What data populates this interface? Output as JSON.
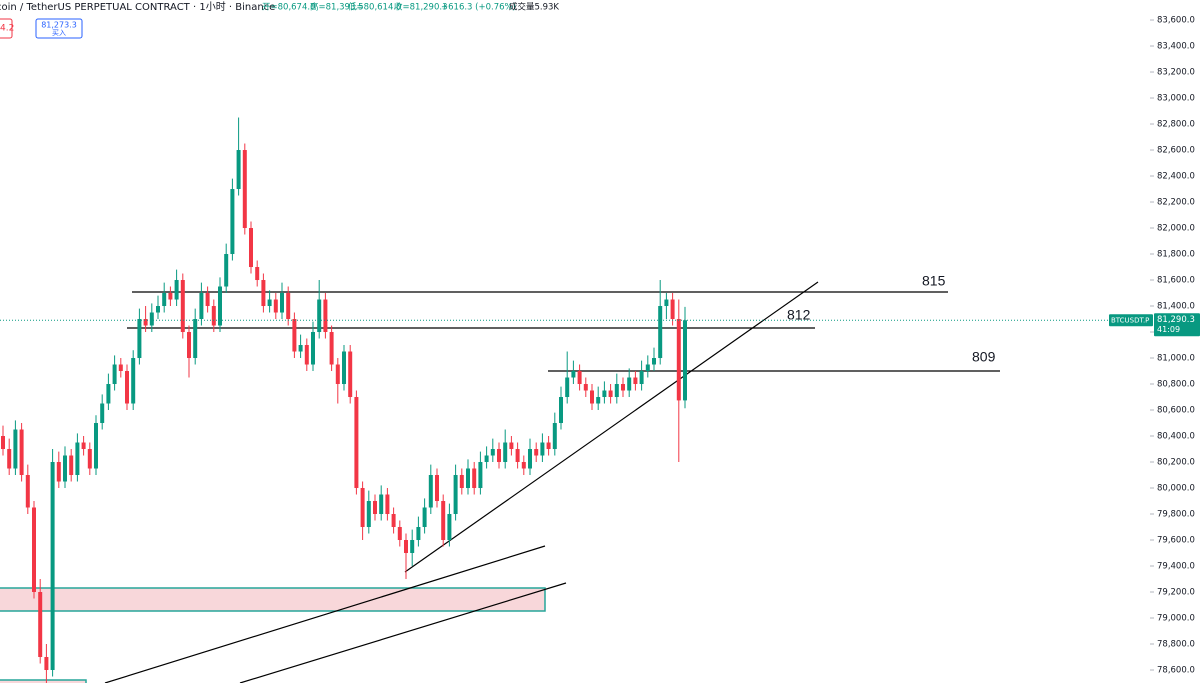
{
  "chart_data": {
    "type": "candlestick",
    "title": "coin / TetherUS PERPETUAL CONTRACT · 1小时 · Binance",
    "info": [
      "开=80,674.0",
      "高=81,393.5",
      "低=80,614.0",
      "收=81,290.3",
      "+616.3 (+0.76%)",
      "成交量5.93K"
    ],
    "sell_box": "4.2",
    "buy_box": {
      "price": "81,273.3",
      "label": "买入"
    },
    "price_tag": {
      "symbol": "BTCUSDT.P",
      "price": "81,290.3",
      "countdown": "41:09"
    },
    "level_labels": [
      "815",
      "812",
      "809"
    ],
    "up_color": "#089981",
    "down_color": "#f23645",
    "ylim": [
      78500,
      83754
    ],
    "yticks": [
      {
        "value": 78600,
        "label": "78,600.0"
      },
      {
        "value": 78800,
        "label": "78,800.0"
      },
      {
        "value": 79000,
        "label": "79,000.0"
      },
      {
        "value": 79200,
        "label": "79,200.0"
      },
      {
        "value": 79400,
        "label": "79,400.0"
      },
      {
        "value": 79600,
        "label": "79,600.0"
      },
      {
        "value": 79800,
        "label": "79,800.0"
      },
      {
        "value": 80000,
        "label": "80,000.0"
      },
      {
        "value": 80200,
        "label": "80,200.0"
      },
      {
        "value": 80400,
        "label": "80,400.0"
      },
      {
        "value": 80600,
        "label": "80,600.0"
      },
      {
        "value": 80800,
        "label": "80,800.0"
      },
      {
        "value": 81000,
        "label": "81,000.0"
      },
      {
        "value": 81200,
        "label": "81,200.0"
      },
      {
        "value": 81400,
        "label": "81,400.0"
      },
      {
        "value": 81600,
        "label": "81,600.0"
      },
      {
        "value": 81800,
        "label": "81,800.0"
      },
      {
        "value": 82000,
        "label": "82,000.0"
      },
      {
        "value": 82200,
        "label": "82,200.0"
      },
      {
        "value": 82400,
        "label": "82,400.0"
      },
      {
        "value": 82600,
        "label": "82,600.0"
      },
      {
        "value": 82800,
        "label": "82,800.0"
      },
      {
        "value": 83000,
        "label": "83,000.0"
      },
      {
        "value": 83200,
        "label": "83,200.0"
      },
      {
        "value": 83400,
        "label": "83,400.0"
      },
      {
        "value": 83600,
        "label": "83,600.0"
      }
    ],
    "candles": [
      [
        80400,
        80480,
        80250,
        80300
      ],
      [
        80300,
        80380,
        80100,
        80150
      ],
      [
        80150,
        80520,
        80100,
        80450
      ],
      [
        80450,
        80500,
        80050,
        80100
      ],
      [
        80100,
        80180,
        79800,
        79850
      ],
      [
        79850,
        79900,
        79150,
        79200
      ],
      [
        79200,
        79300,
        78650,
        78700
      ],
      [
        78700,
        78800,
        78500,
        78600
      ],
      [
        78600,
        80300,
        78550,
        80200
      ],
      [
        80200,
        80280,
        80000,
        80050
      ],
      [
        80050,
        80320,
        80000,
        80250
      ],
      [
        80250,
        80300,
        80050,
        80100
      ],
      [
        80100,
        80420,
        80050,
        80350
      ],
      [
        80350,
        80400,
        80250,
        80300
      ],
      [
        80300,
        80350,
        80100,
        80150
      ],
      [
        80150,
        80560,
        80100,
        80500
      ],
      [
        80500,
        80720,
        80450,
        80650
      ],
      [
        80650,
        80880,
        80600,
        80800
      ],
      [
        80800,
        81020,
        80750,
        80950
      ],
      [
        80950,
        81000,
        80850,
        80900
      ],
      [
        80900,
        80950,
        80600,
        80650
      ],
      [
        80650,
        81060,
        80600,
        81000
      ],
      [
        81000,
        81380,
        80950,
        81300
      ],
      [
        81300,
        81400,
        81200,
        81250
      ],
      [
        81250,
        81420,
        81200,
        81350
      ],
      [
        81350,
        81480,
        81300,
        81400
      ],
      [
        81400,
        81580,
        81350,
        81500
      ],
      [
        81500,
        81550,
        81400,
        81450
      ],
      [
        81450,
        81680,
        81400,
        81600
      ],
      [
        81600,
        81650,
        81150,
        81200
      ],
      [
        81200,
        81250,
        80850,
        81000
      ],
      [
        81000,
        81380,
        80950,
        81300
      ],
      [
        81300,
        81580,
        81250,
        81500
      ],
      [
        81500,
        81550,
        81350,
        81400
      ],
      [
        81400,
        81450,
        81200,
        81250
      ],
      [
        81250,
        81620,
        81200,
        81550
      ],
      [
        81550,
        81880,
        81500,
        81800
      ],
      [
        81800,
        82380,
        81750,
        82300
      ],
      [
        82300,
        82850,
        82250,
        82600
      ],
      [
        82600,
        82650,
        81950,
        82000
      ],
      [
        82000,
        82050,
        81650,
        81700
      ],
      [
        81700,
        81750,
        81550,
        81600
      ],
      [
        81600,
        81650,
        81350,
        81400
      ],
      [
        81400,
        81520,
        81350,
        81450
      ],
      [
        81450,
        81500,
        81300,
        81350
      ],
      [
        81350,
        81580,
        81300,
        81500
      ],
      [
        81500,
        81550,
        81250,
        81300
      ],
      [
        81300,
        81350,
        81000,
        81050
      ],
      [
        81050,
        81180,
        81000,
        81100
      ],
      [
        81100,
        81150,
        80900,
        80950
      ],
      [
        80950,
        81280,
        80900,
        81200
      ],
      [
        81200,
        81600,
        81150,
        81450
      ],
      [
        81450,
        81500,
        81150,
        81200
      ],
      [
        81200,
        81250,
        80900,
        80950
      ],
      [
        80950,
        81000,
        80650,
        80800
      ],
      [
        80800,
        81100,
        80750,
        81050
      ],
      [
        81050,
        81100,
        80650,
        80700
      ],
      [
        80700,
        80750,
        79950,
        80000
      ],
      [
        80000,
        80050,
        79600,
        79700
      ],
      [
        79700,
        79980,
        79650,
        79900
      ],
      [
        79900,
        79950,
        79750,
        79800
      ],
      [
        79800,
        80020,
        79750,
        79950
      ],
      [
        79950,
        80000,
        79750,
        79800
      ],
      [
        79800,
        79850,
        79650,
        79700
      ],
      [
        79700,
        79750,
        79550,
        79600
      ],
      [
        79600,
        79650,
        79300,
        79500
      ],
      [
        79500,
        79680,
        79400,
        79600
      ],
      [
        79600,
        79780,
        79550,
        79700
      ],
      [
        79700,
        79920,
        79650,
        79850
      ],
      [
        79850,
        80180,
        79800,
        80100
      ],
      [
        80100,
        80150,
        79850,
        79900
      ],
      [
        79900,
        79950,
        79550,
        79600
      ],
      [
        79600,
        79880,
        79550,
        79800
      ],
      [
        79800,
        80180,
        79750,
        80100
      ],
      [
        80100,
        80150,
        79950,
        80000
      ],
      [
        80000,
        80220,
        79950,
        80150
      ],
      [
        80150,
        80200,
        79950,
        80000
      ],
      [
        80000,
        80280,
        79950,
        80200
      ],
      [
        80200,
        80320,
        80150,
        80250
      ],
      [
        80250,
        80380,
        80200,
        80300
      ],
      [
        80300,
        80350,
        80150,
        80200
      ],
      [
        80200,
        80450,
        80150,
        80350
      ],
      [
        80350,
        80400,
        80250,
        80300
      ],
      [
        80300,
        80350,
        80150,
        80200
      ],
      [
        80200,
        80250,
        80100,
        80150
      ],
      [
        80150,
        80380,
        80100,
        80300
      ],
      [
        80300,
        80350,
        80200,
        80250
      ],
      [
        80250,
        80420,
        80200,
        80350
      ],
      [
        80350,
        80400,
        80250,
        80300
      ],
      [
        80300,
        80580,
        80250,
        80500
      ],
      [
        80500,
        80780,
        80450,
        80700
      ],
      [
        80700,
        81050,
        80650,
        80850
      ],
      [
        80850,
        80980,
        80800,
        80900
      ],
      [
        80900,
        80950,
        80750,
        80800
      ],
      [
        80800,
        80850,
        80700,
        80750
      ],
      [
        80750,
        80800,
        80600,
        80650
      ],
      [
        80650,
        80780,
        80600,
        80700
      ],
      [
        80700,
        80820,
        80650,
        80750
      ],
      [
        80750,
        80800,
        80650,
        80700
      ],
      [
        80700,
        80880,
        80650,
        80800
      ],
      [
        80800,
        80850,
        80700,
        80750
      ],
      [
        80750,
        80920,
        80700,
        80850
      ],
      [
        80850,
        80900,
        80750,
        80800
      ],
      [
        80800,
        80980,
        80750,
        80900
      ],
      [
        80900,
        81020,
        80850,
        80950
      ],
      [
        80950,
        81080,
        80900,
        81000
      ],
      [
        81000,
        81600,
        80950,
        81400
      ],
      [
        81400,
        81500,
        81300,
        81450
      ],
      [
        81450,
        81500,
        81250,
        81300
      ],
      [
        81300,
        81450,
        80200,
        80674
      ],
      [
        80674,
        81393.5,
        80614,
        81290.3
      ]
    ]
  }
}
